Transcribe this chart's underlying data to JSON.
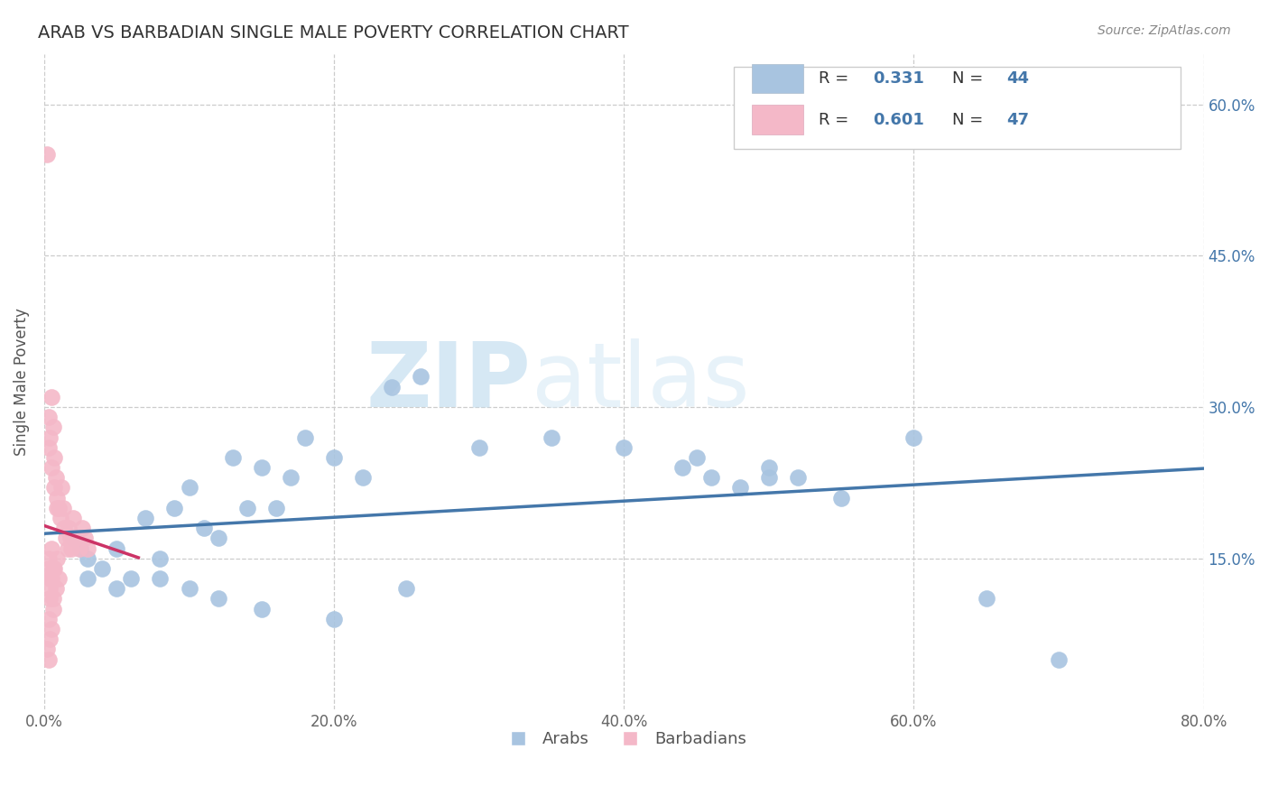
{
  "title": "ARAB VS BARBADIAN SINGLE MALE POVERTY CORRELATION CHART",
  "source": "Source: ZipAtlas.com",
  "ylabel": "Single Male Poverty",
  "xlim": [
    0.0,
    0.8
  ],
  "ylim": [
    0.0,
    0.65
  ],
  "xtick_vals": [
    0.0,
    0.2,
    0.4,
    0.6,
    0.8
  ],
  "xtick_labels": [
    "0.0%",
    "20.0%",
    "40.0%",
    "60.0%",
    "80.0%"
  ],
  "ytick_vals": [
    0.15,
    0.3,
    0.45,
    0.6
  ],
  "ytick_labels": [
    "15.0%",
    "30.0%",
    "45.0%",
    "60.0%"
  ],
  "arab_R": 0.331,
  "arab_N": 44,
  "barbadian_R": 0.601,
  "barbadian_N": 47,
  "arab_color": "#a8c4e0",
  "barbadian_color": "#f4b8c8",
  "arab_line_color": "#4477aa",
  "barbadian_line_color": "#cc3366",
  "watermark_zip": "ZIP",
  "watermark_atlas": "atlas",
  "title_color": "#333333",
  "source_color": "#888888",
  "ylabel_color": "#555555",
  "grid_color": "#cccccc",
  "tick_color": "#4477aa",
  "arab_x": [
    0.02,
    0.025,
    0.03,
    0.04,
    0.05,
    0.06,
    0.07,
    0.08,
    0.09,
    0.1,
    0.11,
    0.12,
    0.13,
    0.14,
    0.15,
    0.16,
    0.17,
    0.18,
    0.2,
    0.22,
    0.24,
    0.26,
    0.3,
    0.35,
    0.4,
    0.45,
    0.5,
    0.55,
    0.6,
    0.65,
    0.7,
    0.03,
    0.05,
    0.08,
    0.1,
    0.12,
    0.15,
    0.2,
    0.25,
    0.44,
    0.46,
    0.48,
    0.5,
    0.52
  ],
  "arab_y": [
    0.17,
    0.16,
    0.15,
    0.14,
    0.16,
    0.13,
    0.19,
    0.15,
    0.2,
    0.22,
    0.18,
    0.17,
    0.25,
    0.2,
    0.24,
    0.2,
    0.23,
    0.27,
    0.25,
    0.23,
    0.32,
    0.33,
    0.26,
    0.27,
    0.26,
    0.25,
    0.23,
    0.21,
    0.27,
    0.11,
    0.05,
    0.13,
    0.12,
    0.13,
    0.12,
    0.11,
    0.1,
    0.09,
    0.12,
    0.24,
    0.23,
    0.22,
    0.24,
    0.23
  ],
  "barbadian_x": [
    0.002,
    0.003,
    0.004,
    0.005,
    0.006,
    0.007,
    0.008,
    0.009,
    0.01,
    0.011,
    0.012,
    0.013,
    0.014,
    0.015,
    0.016,
    0.017,
    0.018,
    0.019,
    0.02,
    0.022,
    0.024,
    0.026,
    0.028,
    0.03,
    0.003,
    0.005,
    0.007,
    0.009,
    0.003,
    0.005,
    0.007,
    0.009,
    0.004,
    0.006,
    0.008,
    0.01,
    0.003,
    0.005,
    0.004,
    0.006,
    0.003,
    0.005,
    0.004,
    0.006,
    0.002,
    0.003,
    0.004
  ],
  "barbadian_y": [
    0.55,
    0.29,
    0.27,
    0.31,
    0.28,
    0.25,
    0.23,
    0.21,
    0.2,
    0.19,
    0.22,
    0.2,
    0.18,
    0.17,
    0.16,
    0.18,
    0.17,
    0.16,
    0.19,
    0.17,
    0.16,
    0.18,
    0.17,
    0.16,
    0.26,
    0.24,
    0.22,
    0.2,
    0.15,
    0.16,
    0.14,
    0.15,
    0.13,
    0.14,
    0.12,
    0.13,
    0.09,
    0.08,
    0.11,
    0.1,
    0.14,
    0.13,
    0.12,
    0.11,
    0.06,
    0.05,
    0.07
  ]
}
